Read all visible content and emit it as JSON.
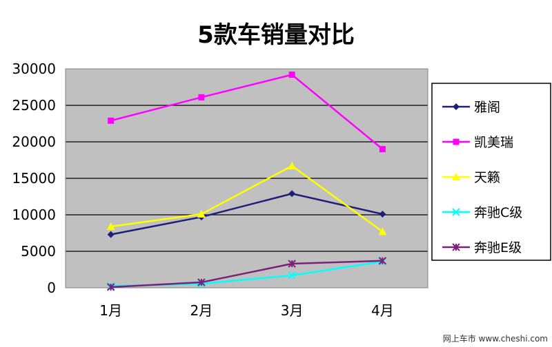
{
  "chart_data": {
    "type": "line",
    "title": "5款车销量对比",
    "categories": [
      "1月",
      "2月",
      "3月",
      "4月"
    ],
    "ylim": [
      0,
      30000
    ],
    "yticks": [
      0,
      5000,
      10000,
      15000,
      20000,
      25000,
      30000
    ],
    "grid": true,
    "legend_position": "right",
    "series": [
      {
        "name": "雅阁",
        "values": [
          7300,
          9700,
          12900,
          10100
        ],
        "color": "#1f1f7a",
        "marker": "diamond"
      },
      {
        "name": "凯美瑞",
        "values": [
          22900,
          26100,
          29200,
          19000
        ],
        "color": "#ff00ff",
        "marker": "square"
      },
      {
        "name": "天籁",
        "values": [
          8400,
          10100,
          16700,
          7700
        ],
        "color": "#ffff00",
        "marker": "triangle"
      },
      {
        "name": "奔驰C级",
        "values": [
          250,
          550,
          1700,
          3600
        ],
        "color": "#00ffff",
        "marker": "x"
      },
      {
        "name": "奔驰E级",
        "values": [
          100,
          750,
          3300,
          3700
        ],
        "color": "#7a1f7a",
        "marker": "star"
      }
    ]
  },
  "watermark": "网上车市 www.cheshi.com"
}
